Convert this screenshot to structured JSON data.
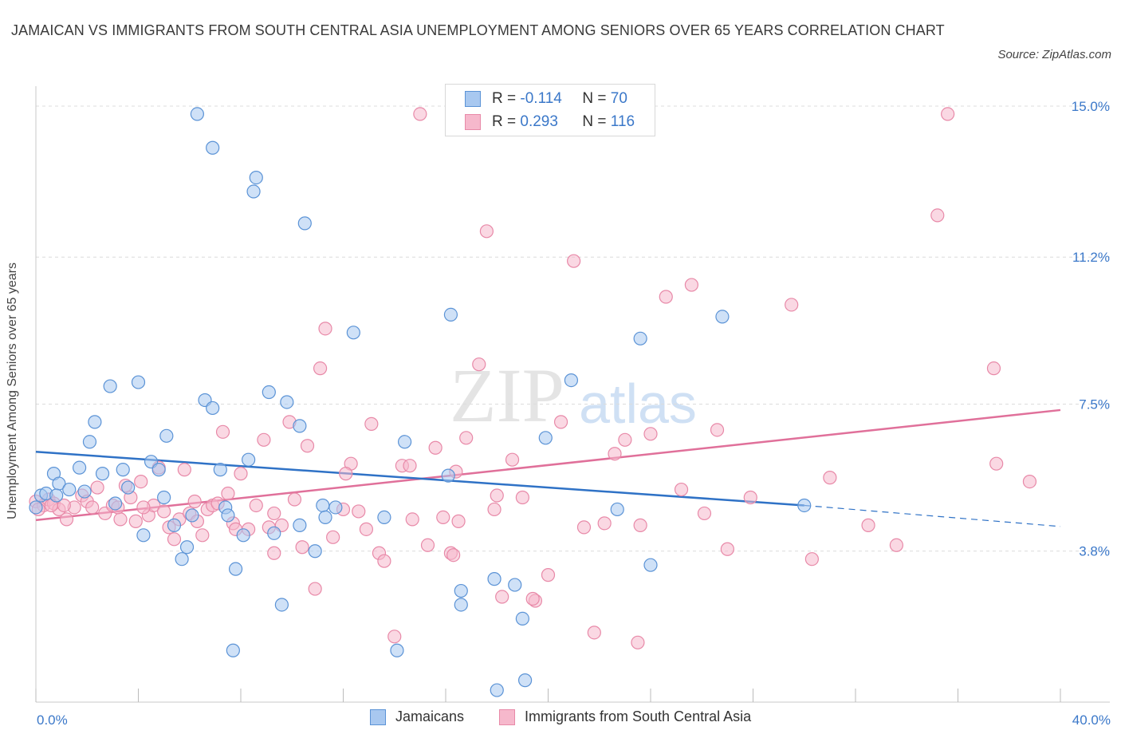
{
  "title": "JAMAICAN VS IMMIGRANTS FROM SOUTH CENTRAL ASIA UNEMPLOYMENT AMONG SENIORS OVER 65 YEARS CORRELATION CHART",
  "source": "Source: ZipAtlas.com",
  "watermark": {
    "zip": "ZIP",
    "atlas": "atlas"
  },
  "legend_top": {
    "r_label": "R =",
    "n_label": "N =",
    "series": [
      {
        "r": "-0.114",
        "n": "70"
      },
      {
        "r": "0.293",
        "n": "116"
      }
    ]
  },
  "colors": {
    "blue_fill": "#a8c8f0",
    "blue_stroke": "#5b93d6",
    "blue_line": "#2f72c6",
    "pink_fill": "#f6b8cc",
    "pink_stroke": "#e889a8",
    "pink_line": "#e0709a",
    "axis_text": "#3b78c9",
    "grid": "#dcdcdc"
  },
  "chart_data": {
    "type": "scatter",
    "ylabel": "Unemployment Among Seniors over 65 years",
    "xlim": [
      0,
      40
    ],
    "ylim": [
      0,
      15.3
    ],
    "x_tick_labels": [
      "0.0%",
      "40.0%"
    ],
    "y_ticks": [
      3.8,
      7.5,
      11.2,
      15.0
    ],
    "y_tick_labels": [
      "3.8%",
      "7.5%",
      "11.2%",
      "15.0%"
    ],
    "grid": true,
    "legend_placement": "bottom",
    "series": [
      {
        "name": "Jamaicans",
        "trend": {
          "x0": 0,
          "y0": 6.3,
          "x1": 30,
          "y1": 4.95,
          "dashed_to": 40,
          "dashed_y": 4.42
        },
        "points": [
          [
            0.0,
            4.9
          ],
          [
            0.2,
            5.2
          ],
          [
            0.4,
            5.25
          ],
          [
            0.7,
            5.75
          ],
          [
            0.9,
            5.5
          ],
          [
            1.3,
            5.35
          ],
          [
            1.7,
            5.9
          ],
          [
            2.1,
            6.55
          ],
          [
            2.3,
            7.05
          ],
          [
            2.6,
            5.75
          ],
          [
            2.9,
            7.95
          ],
          [
            3.1,
            5.0
          ],
          [
            3.4,
            5.85
          ],
          [
            3.6,
            5.4
          ],
          [
            4.0,
            8.05
          ],
          [
            4.2,
            4.2
          ],
          [
            4.5,
            6.05
          ],
          [
            4.8,
            5.85
          ],
          [
            5.0,
            5.15
          ],
          [
            5.1,
            6.7
          ],
          [
            5.4,
            4.45
          ],
          [
            5.7,
            3.6
          ],
          [
            5.9,
            3.9
          ],
          [
            6.1,
            4.7
          ],
          [
            6.3,
            14.8
          ],
          [
            6.6,
            7.6
          ],
          [
            6.9,
            7.4
          ],
          [
            6.9,
            13.95
          ],
          [
            7.2,
            5.85
          ],
          [
            7.4,
            4.9
          ],
          [
            7.5,
            4.7
          ],
          [
            7.7,
            1.3
          ],
          [
            7.8,
            3.35
          ],
          [
            8.1,
            4.2
          ],
          [
            8.3,
            6.1
          ],
          [
            8.5,
            12.85
          ],
          [
            8.6,
            13.2
          ],
          [
            9.1,
            7.8
          ],
          [
            9.3,
            4.25
          ],
          [
            9.6,
            2.45
          ],
          [
            9.8,
            7.55
          ],
          [
            10.3,
            4.45
          ],
          [
            10.3,
            6.95
          ],
          [
            10.5,
            12.05
          ],
          [
            10.9,
            3.8
          ],
          [
            11.2,
            4.95
          ],
          [
            11.3,
            4.65
          ],
          [
            11.7,
            4.9
          ],
          [
            12.4,
            9.3
          ],
          [
            13.6,
            4.65
          ],
          [
            14.1,
            1.3
          ],
          [
            14.4,
            6.55
          ],
          [
            16.1,
            5.7
          ],
          [
            16.2,
            9.75
          ],
          [
            16.6,
            2.8
          ],
          [
            16.6,
            2.45
          ],
          [
            17.9,
            3.1
          ],
          [
            18.0,
            0.3
          ],
          [
            18.7,
            2.95
          ],
          [
            19.0,
            2.1
          ],
          [
            19.1,
            0.55
          ],
          [
            19.9,
            6.65
          ],
          [
            20.9,
            8.1
          ],
          [
            22.7,
            4.85
          ],
          [
            23.6,
            9.15
          ],
          [
            24.0,
            3.45
          ],
          [
            26.8,
            9.7
          ],
          [
            30.0,
            4.95
          ],
          [
            0.8,
            5.2
          ],
          [
            1.9,
            5.3
          ]
        ]
      },
      {
        "name": "Immigrants from South Central Asia",
        "trend": {
          "x0": 0,
          "y0": 4.58,
          "x1": 40,
          "y1": 7.35
        },
        "points": [
          [
            0.0,
            5.05
          ],
          [
            0.3,
            4.95
          ],
          [
            0.5,
            5.1
          ],
          [
            0.7,
            5.0
          ],
          [
            0.9,
            4.85
          ],
          [
            1.2,
            4.6
          ],
          [
            1.5,
            4.9
          ],
          [
            1.8,
            5.2
          ],
          [
            2.0,
            5.05
          ],
          [
            2.2,
            4.9
          ],
          [
            2.4,
            5.4
          ],
          [
            2.7,
            4.75
          ],
          [
            3.0,
            4.95
          ],
          [
            3.3,
            4.6
          ],
          [
            3.5,
            5.45
          ],
          [
            3.7,
            5.15
          ],
          [
            3.9,
            4.55
          ],
          [
            4.1,
            5.55
          ],
          [
            4.4,
            4.7
          ],
          [
            4.6,
            4.95
          ],
          [
            4.8,
            5.9
          ],
          [
            5.0,
            4.8
          ],
          [
            5.2,
            4.4
          ],
          [
            5.4,
            4.1
          ],
          [
            5.6,
            4.6
          ],
          [
            5.8,
            5.85
          ],
          [
            6.0,
            4.75
          ],
          [
            6.2,
            5.05
          ],
          [
            6.5,
            4.2
          ],
          [
            6.7,
            4.85
          ],
          [
            6.9,
            4.95
          ],
          [
            7.1,
            5.0
          ],
          [
            7.3,
            6.8
          ],
          [
            7.5,
            5.25
          ],
          [
            7.7,
            4.5
          ],
          [
            8.0,
            5.75
          ],
          [
            8.3,
            4.35
          ],
          [
            8.6,
            4.95
          ],
          [
            8.9,
            6.6
          ],
          [
            9.1,
            4.4
          ],
          [
            9.3,
            4.75
          ],
          [
            9.6,
            4.45
          ],
          [
            9.9,
            7.05
          ],
          [
            10.1,
            5.1
          ],
          [
            10.4,
            3.9
          ],
          [
            10.6,
            6.45
          ],
          [
            10.9,
            2.85
          ],
          [
            11.1,
            8.4
          ],
          [
            11.3,
            9.4
          ],
          [
            11.6,
            4.15
          ],
          [
            12.0,
            4.85
          ],
          [
            12.3,
            6.0
          ],
          [
            12.6,
            4.8
          ],
          [
            12.9,
            4.35
          ],
          [
            13.1,
            7.0
          ],
          [
            13.4,
            3.75
          ],
          [
            13.6,
            3.55
          ],
          [
            14.0,
            1.65
          ],
          [
            14.3,
            5.95
          ],
          [
            14.7,
            4.6
          ],
          [
            15.0,
            14.8
          ],
          [
            15.3,
            3.95
          ],
          [
            15.6,
            6.4
          ],
          [
            15.9,
            4.65
          ],
          [
            16.2,
            3.75
          ],
          [
            16.5,
            4.55
          ],
          [
            16.8,
            6.65
          ],
          [
            17.3,
            8.5
          ],
          [
            17.6,
            11.85
          ],
          [
            17.9,
            4.85
          ],
          [
            18.2,
            2.65
          ],
          [
            18.6,
            6.1
          ],
          [
            19.0,
            5.15
          ],
          [
            19.5,
            2.55
          ],
          [
            20.0,
            3.2
          ],
          [
            20.5,
            7.05
          ],
          [
            21.0,
            11.1
          ],
          [
            21.4,
            4.4
          ],
          [
            21.8,
            1.75
          ],
          [
            22.2,
            4.5
          ],
          [
            22.6,
            6.25
          ],
          [
            23.0,
            6.6
          ],
          [
            23.5,
            1.5
          ],
          [
            24.0,
            6.75
          ],
          [
            24.6,
            10.2
          ],
          [
            25.2,
            5.35
          ],
          [
            25.6,
            10.5
          ],
          [
            26.1,
            4.75
          ],
          [
            27.0,
            3.85
          ],
          [
            27.9,
            5.15
          ],
          [
            29.5,
            10.0
          ],
          [
            30.3,
            3.6
          ],
          [
            31.0,
            5.65
          ],
          [
            32.5,
            4.45
          ],
          [
            33.6,
            3.95
          ],
          [
            35.2,
            12.25
          ],
          [
            35.6,
            14.8
          ],
          [
            37.4,
            8.4
          ],
          [
            37.5,
            6.0
          ],
          [
            38.8,
            5.55
          ],
          [
            0.1,
            4.85
          ],
          [
            0.6,
            4.95
          ],
          [
            1.1,
            4.95
          ],
          [
            3.2,
            4.9
          ],
          [
            12.1,
            5.75
          ],
          [
            16.3,
            3.7
          ],
          [
            16.4,
            5.8
          ],
          [
            18.0,
            5.2
          ],
          [
            19.4,
            2.6
          ],
          [
            23.6,
            4.45
          ],
          [
            26.6,
            6.85
          ],
          [
            4.2,
            4.9
          ],
          [
            6.3,
            4.55
          ],
          [
            7.8,
            4.35
          ],
          [
            9.3,
            3.75
          ],
          [
            14.6,
            5.95
          ]
        ]
      }
    ]
  }
}
